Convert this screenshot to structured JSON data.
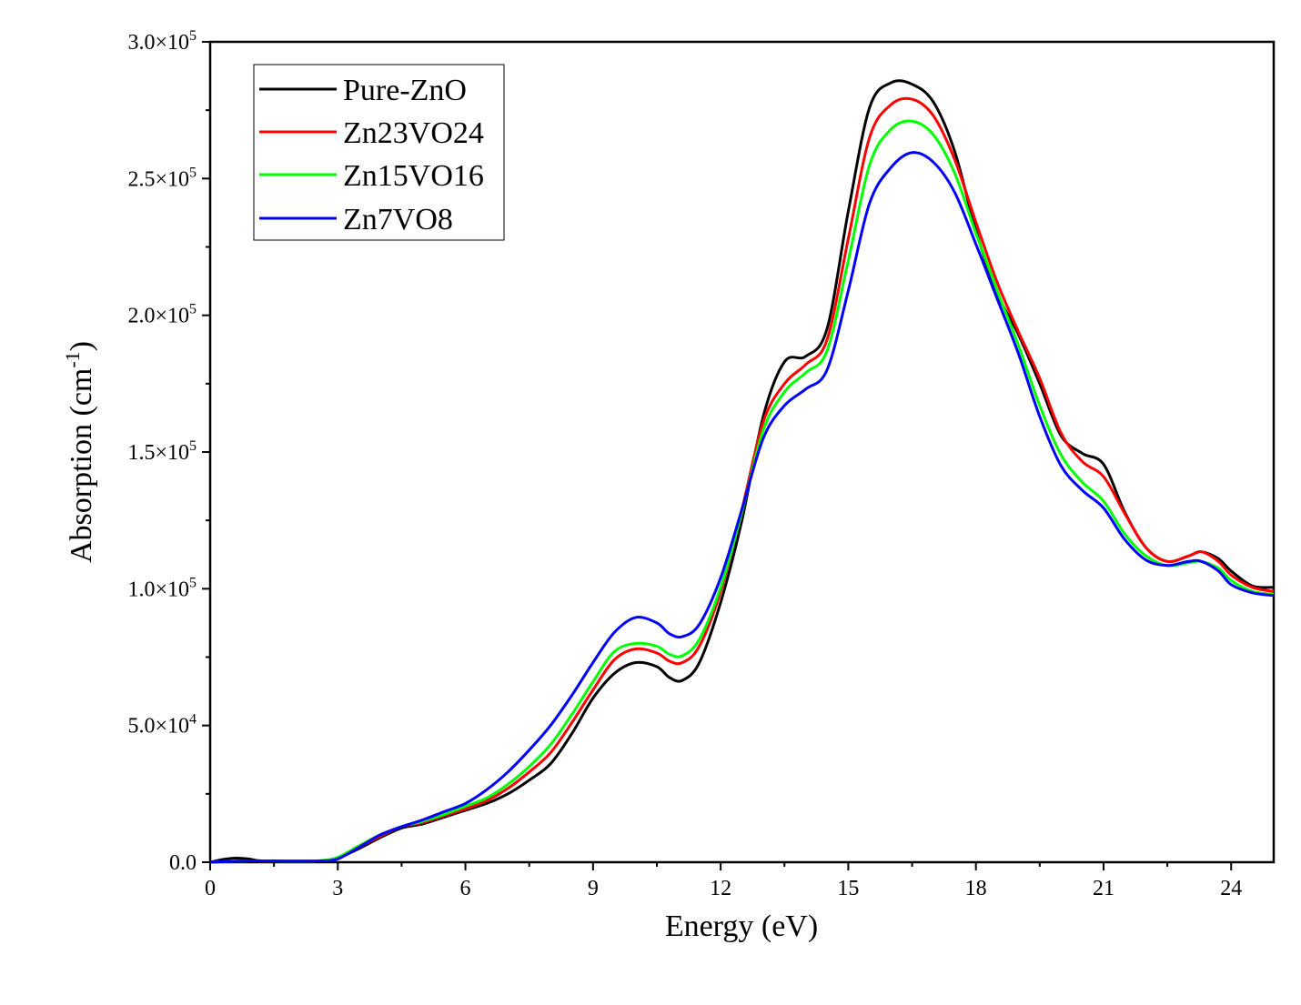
{
  "chart_data": {
    "type": "line",
    "title": "",
    "xlabel": "Energy (eV)",
    "ylabel_main": "Absorption (cm",
    "ylabel_sup": "-1",
    "ylabel_close": ")",
    "xlim": [
      0,
      25
    ],
    "ylim": [
      0,
      300000
    ],
    "xticks": [
      0,
      3,
      6,
      9,
      12,
      15,
      18,
      21,
      24
    ],
    "yticks": [
      {
        "value": 0,
        "mantissa": "0.0",
        "exp": ""
      },
      {
        "value": 50000,
        "mantissa": "5.0×10",
        "exp": "4"
      },
      {
        "value": 100000,
        "mantissa": "1.0×10",
        "exp": "5"
      },
      {
        "value": 150000,
        "mantissa": "1.5×10",
        "exp": "5"
      },
      {
        "value": 200000,
        "mantissa": "2.0×10",
        "exp": "5"
      },
      {
        "value": 250000,
        "mantissa": "2.5×10",
        "exp": "5"
      },
      {
        "value": 300000,
        "mantissa": "3.0×10",
        "exp": "5"
      }
    ],
    "grid": false,
    "legend_position": "top-left",
    "series": [
      {
        "name": "Pure-ZnO",
        "color": "#000000",
        "points": [
          [
            0,
            0
          ],
          [
            0.3,
            1000
          ],
          [
            0.6,
            1500
          ],
          [
            0.9,
            1200
          ],
          [
            1.2,
            500
          ],
          [
            2,
            300
          ],
          [
            2.6,
            500
          ],
          [
            3,
            1500
          ],
          [
            3.5,
            5000
          ],
          [
            4,
            9000
          ],
          [
            4.5,
            12500
          ],
          [
            5,
            14000
          ],
          [
            5.5,
            16500
          ],
          [
            6,
            19000
          ],
          [
            6.5,
            21500
          ],
          [
            7,
            25000
          ],
          [
            7.5,
            30000
          ],
          [
            8,
            36000
          ],
          [
            8.5,
            47000
          ],
          [
            9,
            60000
          ],
          [
            9.5,
            69000
          ],
          [
            10,
            73000
          ],
          [
            10.5,
            71500
          ],
          [
            10.8,
            67500
          ],
          [
            11.1,
            66500
          ],
          [
            11.5,
            73000
          ],
          [
            12,
            95000
          ],
          [
            12.5,
            125000
          ],
          [
            13,
            163000
          ],
          [
            13.5,
            183000
          ],
          [
            14,
            185000
          ],
          [
            14.5,
            195000
          ],
          [
            15,
            238000
          ],
          [
            15.5,
            276000
          ],
          [
            16,
            285000
          ],
          [
            16.5,
            284500
          ],
          [
            17,
            278000
          ],
          [
            17.5,
            260000
          ],
          [
            18,
            231000
          ],
          [
            18.5,
            208000
          ],
          [
            19,
            193000
          ],
          [
            19.5,
            175000
          ],
          [
            20,
            156000
          ],
          [
            20.5,
            149500
          ],
          [
            21,
            145500
          ],
          [
            21.5,
            128000
          ],
          [
            22,
            115000
          ],
          [
            22.5,
            110000
          ],
          [
            23,
            112000
          ],
          [
            23.3,
            113500
          ],
          [
            23.7,
            111000
          ],
          [
            24,
            106500
          ],
          [
            24.5,
            101000
          ],
          [
            25,
            100500
          ]
        ]
      },
      {
        "name": "Zn23VO24",
        "color": "#ff0000",
        "points": [
          [
            0,
            0
          ],
          [
            0.5,
            300
          ],
          [
            1,
            500
          ],
          [
            2,
            400
          ],
          [
            2.6,
            500
          ],
          [
            3,
            1500
          ],
          [
            3.5,
            5500
          ],
          [
            4,
            9500
          ],
          [
            4.5,
            13000
          ],
          [
            5,
            14500
          ],
          [
            5.5,
            17000
          ],
          [
            6,
            19500
          ],
          [
            6.5,
            22500
          ],
          [
            7,
            27000
          ],
          [
            7.5,
            33000
          ],
          [
            8,
            40000
          ],
          [
            8.5,
            51000
          ],
          [
            9,
            63000
          ],
          [
            9.5,
            74000
          ],
          [
            10,
            78000
          ],
          [
            10.5,
            76500
          ],
          [
            10.8,
            73500
          ],
          [
            11.1,
            73000
          ],
          [
            11.5,
            79000
          ],
          [
            12,
            99000
          ],
          [
            12.5,
            129000
          ],
          [
            13,
            161000
          ],
          [
            13.5,
            175000
          ],
          [
            14,
            182000
          ],
          [
            14.5,
            191000
          ],
          [
            15,
            228000
          ],
          [
            15.5,
            265000
          ],
          [
            16,
            277000
          ],
          [
            16.5,
            279000
          ],
          [
            17,
            273000
          ],
          [
            17.5,
            257000
          ],
          [
            18,
            234000
          ],
          [
            18.5,
            212000
          ],
          [
            19,
            194000
          ],
          [
            19.5,
            177000
          ],
          [
            20,
            157000
          ],
          [
            20.5,
            146500
          ],
          [
            21,
            141000
          ],
          [
            21.5,
            127500
          ],
          [
            22,
            115000
          ],
          [
            22.5,
            110000
          ],
          [
            23,
            112000
          ],
          [
            23.3,
            113500
          ],
          [
            23.7,
            110000
          ],
          [
            24,
            105000
          ],
          [
            24.5,
            100500
          ],
          [
            25,
            99000
          ]
        ]
      },
      {
        "name": "Zn15VO16",
        "color": "#00ff00",
        "points": [
          [
            0,
            0
          ],
          [
            0.5,
            300
          ],
          [
            1,
            500
          ],
          [
            2,
            400
          ],
          [
            2.6,
            600
          ],
          [
            3,
            1800
          ],
          [
            3.5,
            6000
          ],
          [
            4,
            10000
          ],
          [
            4.5,
            13000
          ],
          [
            5,
            15000
          ],
          [
            5.5,
            17500
          ],
          [
            6,
            20500
          ],
          [
            6.5,
            23500
          ],
          [
            7,
            28500
          ],
          [
            7.5,
            35000
          ],
          [
            8,
            43000
          ],
          [
            8.5,
            54000
          ],
          [
            9,
            66000
          ],
          [
            9.5,
            77000
          ],
          [
            10,
            80000
          ],
          [
            10.5,
            79000
          ],
          [
            10.8,
            76000
          ],
          [
            11.1,
            75500
          ],
          [
            11.5,
            81500
          ],
          [
            12,
            100500
          ],
          [
            12.5,
            128000
          ],
          [
            13,
            158000
          ],
          [
            13.5,
            172000
          ],
          [
            14,
            179000
          ],
          [
            14.5,
            187000
          ],
          [
            15,
            220000
          ],
          [
            15.5,
            255000
          ],
          [
            16,
            268000
          ],
          [
            16.5,
            271000
          ],
          [
            17,
            266000
          ],
          [
            17.5,
            252000
          ],
          [
            18,
            230000
          ],
          [
            18.5,
            209000
          ],
          [
            19,
            189000
          ],
          [
            19.5,
            167000
          ],
          [
            20,
            149000
          ],
          [
            20.5,
            139000
          ],
          [
            21,
            132000
          ],
          [
            21.5,
            120000
          ],
          [
            22,
            112000
          ],
          [
            22.5,
            108500
          ],
          [
            23,
            109500
          ],
          [
            23.3,
            110000
          ],
          [
            23.7,
            107500
          ],
          [
            24,
            103000
          ],
          [
            24.5,
            99000
          ],
          [
            25,
            98000
          ]
        ]
      },
      {
        "name": "Zn7VO8",
        "color": "#0000ff",
        "points": [
          [
            0,
            0
          ],
          [
            0.5,
            300
          ],
          [
            1,
            500
          ],
          [
            2,
            400
          ],
          [
            2.6,
            500
          ],
          [
            3,
            1200
          ],
          [
            3.5,
            5500
          ],
          [
            4,
            10000
          ],
          [
            4.5,
            13000
          ],
          [
            5,
            15500
          ],
          [
            5.5,
            18500
          ],
          [
            6,
            21500
          ],
          [
            6.5,
            26500
          ],
          [
            7,
            33000
          ],
          [
            7.5,
            41000
          ],
          [
            8,
            50000
          ],
          [
            8.5,
            61000
          ],
          [
            9,
            73000
          ],
          [
            9.5,
            84000
          ],
          [
            10,
            89500
          ],
          [
            10.5,
            87500
          ],
          [
            10.8,
            83500
          ],
          [
            11.1,
            82500
          ],
          [
            11.5,
            87000
          ],
          [
            12,
            104000
          ],
          [
            12.5,
            129000
          ],
          [
            13,
            155000
          ],
          [
            13.5,
            167000
          ],
          [
            14,
            173000
          ],
          [
            14.5,
            180000
          ],
          [
            15,
            209000
          ],
          [
            15.5,
            241000
          ],
          [
            16,
            254000
          ],
          [
            16.5,
            259500
          ],
          [
            17,
            256000
          ],
          [
            17.5,
            245000
          ],
          [
            18,
            226000
          ],
          [
            18.5,
            206000
          ],
          [
            19,
            186000
          ],
          [
            19.5,
            163000
          ],
          [
            20,
            145000
          ],
          [
            20.5,
            136000
          ],
          [
            21,
            129500
          ],
          [
            21.5,
            118000
          ],
          [
            22,
            110500
          ],
          [
            22.5,
            108500
          ],
          [
            23,
            110000
          ],
          [
            23.3,
            110000
          ],
          [
            23.7,
            106500
          ],
          [
            24,
            101500
          ],
          [
            24.5,
            98500
          ],
          [
            25,
            97500
          ]
        ]
      }
    ]
  }
}
